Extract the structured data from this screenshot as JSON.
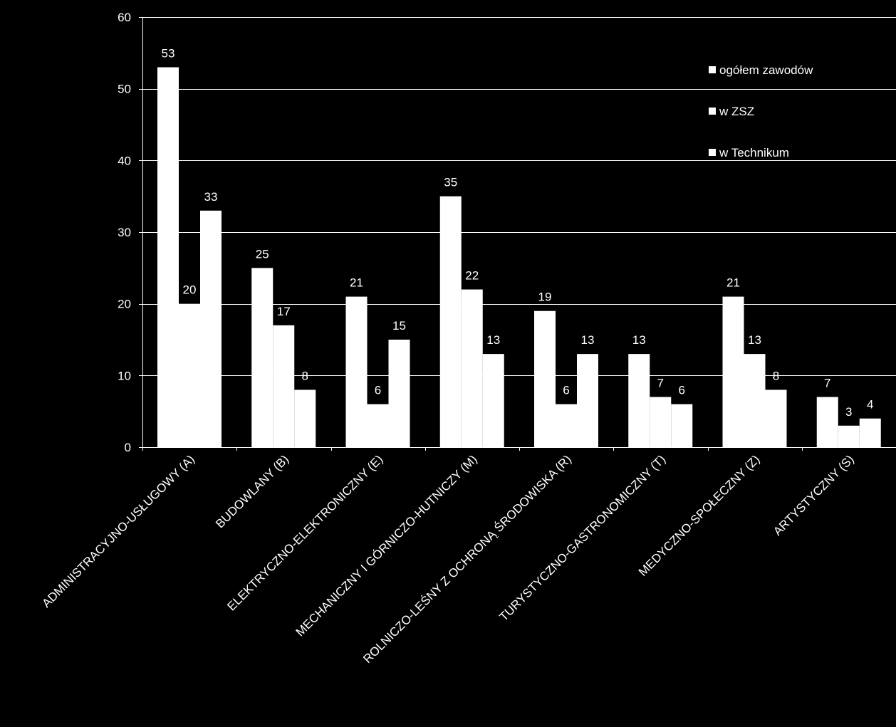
{
  "chart_data": {
    "type": "bar",
    "title": "",
    "xlabel": "",
    "ylabel": "",
    "ylim": [
      0,
      60
    ],
    "yticks": [
      0,
      10,
      20,
      30,
      40,
      50,
      60
    ],
    "grid": true,
    "legend_position": "top-right",
    "categories": [
      "ADMINISTRACYJNO-USŁUGOWY (A)",
      "BUDOWLANY (B)",
      "ELEKTRYCZNO-ELEKTRONICZNY (E)",
      "MECHANICZNY I GÓRNICZO-HUTNICZY (M)",
      "ROLNICZO-LEŚNY Z OCHRONĄ ŚRODOWISKA (R)",
      "TURYSTYCZNO-GASTRONOMICZNY (T)",
      "MEDYCZNO-SPOŁECZNY (Z)",
      "ARTYSTYCZNY (S)"
    ],
    "series": [
      {
        "name": "ogółem zawodów",
        "values": [
          53,
          25,
          21,
          35,
          19,
          13,
          21,
          7
        ]
      },
      {
        "name": "w ZSZ",
        "values": [
          20,
          17,
          6,
          22,
          6,
          7,
          13,
          3
        ]
      },
      {
        "name": "w Technikum",
        "values": [
          33,
          8,
          15,
          13,
          13,
          6,
          8,
          4
        ]
      }
    ],
    "colors": {
      "background": "#000000",
      "bars": "#ffffff",
      "text": "#ffffff",
      "grid": "#ffffff"
    }
  }
}
